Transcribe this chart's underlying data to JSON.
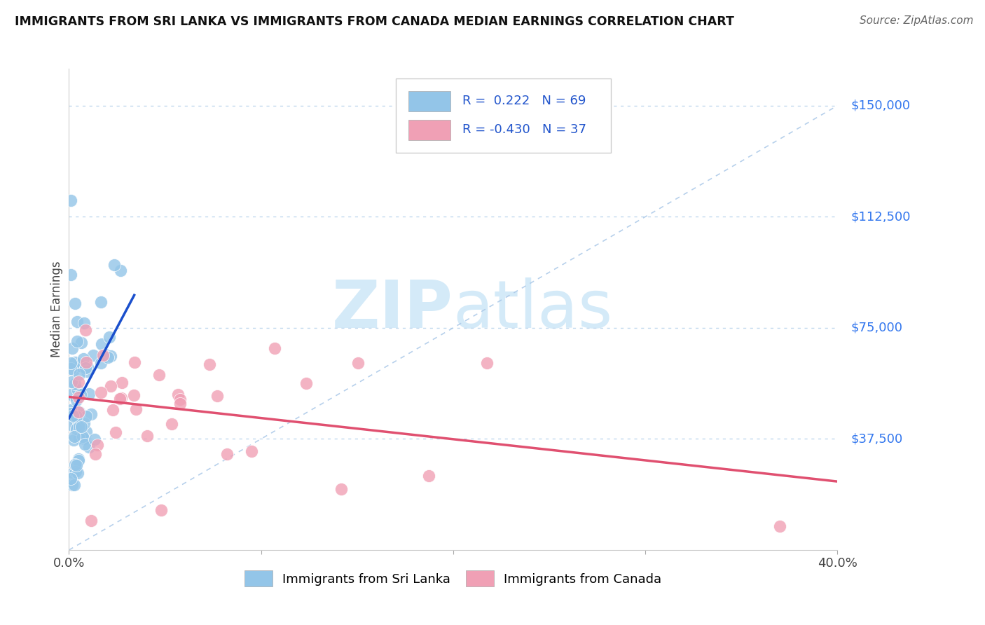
{
  "title": "IMMIGRANTS FROM SRI LANKA VS IMMIGRANTS FROM CANADA MEDIAN EARNINGS CORRELATION CHART",
  "source": "Source: ZipAtlas.com",
  "ylabel": "Median Earnings",
  "xlim": [
    0.0,
    0.4
  ],
  "ylim": [
    0,
    162500
  ],
  "ytick_values": [
    37500,
    75000,
    112500,
    150000
  ],
  "ytick_labels": [
    "$37,500",
    "$75,000",
    "$112,500",
    "$150,000"
  ],
  "series1_label": "Immigrants from Sri Lanka",
  "series1_R": "0.222",
  "series1_N": "69",
  "series1_color": "#93c5e8",
  "series1_line_color": "#1a4fcc",
  "series2_label": "Immigrants from Canada",
  "series2_R": "-0.430",
  "series2_N": "37",
  "series2_color": "#f0a0b5",
  "series2_line_color": "#e05070",
  "diagonal_color": "#aac8e8",
  "watermark_color": "#d4eaf8",
  "background_color": "#ffffff",
  "grid_color": "#c0d8ee",
  "right_label_color": "#3377ee",
  "title_color": "#111111",
  "source_color": "#666666",
  "legend_text_color": "#2255cc"
}
